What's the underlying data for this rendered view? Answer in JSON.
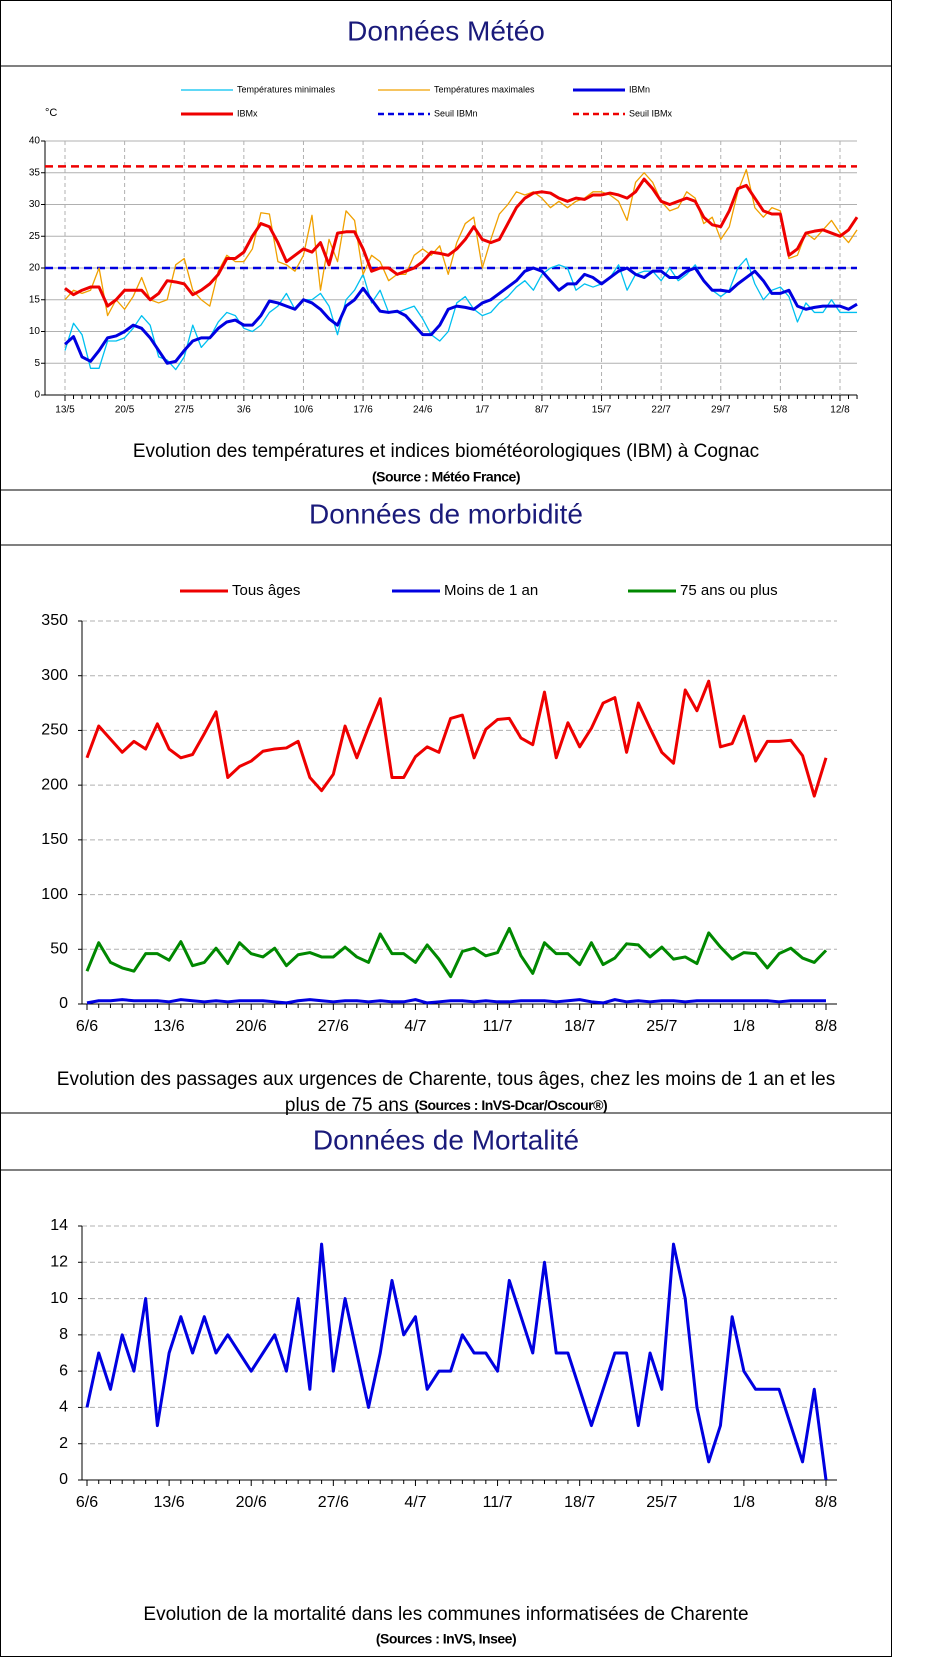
{
  "headers": [
    "Données Météo",
    "Données de morbidité",
    "Données de Mortalité"
  ],
  "chart_data": [
    {
      "type": "line",
      "y_unit": "°C",
      "caption": [
        "Evolution des températures et indices biométéorologiques (IBM) à Cognac"
      ],
      "source": "(Source : Météo France)",
      "categories": [
        "13/5",
        null,
        null,
        null,
        null,
        null,
        null,
        "20/5",
        null,
        null,
        null,
        null,
        null,
        null,
        "27/5",
        null,
        null,
        null,
        null,
        null,
        null,
        "3/6",
        null,
        null,
        null,
        null,
        null,
        null,
        "10/6",
        null,
        null,
        null,
        null,
        null,
        null,
        "17/6",
        null,
        null,
        null,
        null,
        null,
        null,
        "24/6",
        null,
        null,
        null,
        null,
        null,
        null,
        "1/7",
        null,
        null,
        null,
        null,
        null,
        null,
        "8/7",
        null,
        null,
        null,
        null,
        null,
        null,
        "15/7",
        null,
        null,
        null,
        null,
        null,
        null,
        "22/7",
        null,
        null,
        null,
        null,
        null,
        null,
        "29/7",
        null,
        null,
        null,
        null,
        null,
        null,
        "5/8",
        null,
        null,
        null,
        null,
        null,
        null,
        "12/8",
        null,
        null
      ],
      "series": [
        {
          "name": "Températures minimales",
          "color": "#00c0f0",
          "width": 1.3,
          "values": [
            7,
            11.3,
            9.5,
            4.2,
            4.2,
            8.5,
            8.5,
            9,
            10.5,
            12.5,
            11,
            6,
            5.5,
            4,
            6,
            11,
            7.5,
            9,
            11.5,
            13,
            12.5,
            10.5,
            10,
            11,
            13,
            14,
            16,
            13.5,
            15,
            15,
            16,
            14,
            9.5,
            15,
            16.5,
            19,
            14.5,
            16.5,
            13,
            13,
            13.5,
            14,
            12,
            9.5,
            8.5,
            10,
            14.5,
            15.5,
            13.5,
            12.5,
            13,
            14.5,
            15.5,
            17,
            18,
            16.5,
            19,
            20,
            20.5,
            20,
            16.5,
            17.5,
            17,
            17.5,
            18.5,
            20.5,
            16.5,
            19,
            19.5,
            19.5,
            18,
            20,
            18,
            19,
            20.5,
            18,
            16.5,
            15.5,
            16.5,
            20,
            21.5,
            17.5,
            15,
            16.5,
            17,
            15.5,
            11.5,
            14.5,
            13,
            13,
            15,
            13,
            13,
            13
          ]
        },
        {
          "name": "Températures maximales",
          "color": "#f0a000",
          "width": 1.3,
          "values": [
            15,
            16.5,
            16,
            16.5,
            20,
            12.5,
            15,
            13.5,
            15.5,
            18.5,
            15,
            14.5,
            15,
            20.5,
            21.5,
            16.5,
            15,
            14,
            19.5,
            22,
            21,
            21,
            23,
            28.7,
            28.5,
            21,
            20.5,
            19.5,
            22,
            28.3,
            16.5,
            24.5,
            21,
            29,
            27.5,
            19,
            22,
            21,
            18,
            19,
            19,
            22,
            23,
            22,
            23.5,
            19,
            24,
            27,
            28,
            20,
            24.5,
            28.5,
            30,
            32,
            31.5,
            32,
            31,
            29.5,
            30.5,
            29.5,
            30.5,
            31,
            32,
            32,
            31.5,
            30.5,
            27.5,
            33.5,
            35,
            33.5,
            30.5,
            29,
            29.5,
            32,
            31,
            27,
            28,
            24.5,
            26.5,
            32,
            35.5,
            29.5,
            28,
            29.5,
            29,
            21.5,
            22,
            25.5,
            24.5,
            26,
            27.5,
            25.5,
            24,
            26
          ]
        },
        {
          "name": "IBMn",
          "color": "#0000e0",
          "width": 3,
          "values": [
            8,
            9.2,
            6,
            5.3,
            7,
            9,
            9.3,
            10,
            11,
            10.5,
            9,
            7,
            5,
            5.3,
            7,
            8.5,
            9,
            9,
            10.5,
            11.5,
            11.8,
            11,
            11,
            12.5,
            14.8,
            14.5,
            14,
            13.5,
            15,
            14.5,
            13.5,
            12,
            11,
            14,
            15,
            16.8,
            15,
            13.2,
            13,
            13.2,
            12.5,
            11,
            9.5,
            9.5,
            11,
            13.5,
            14,
            13.8,
            13.5,
            14.5,
            15,
            16,
            17,
            18,
            19.5,
            20,
            19.5,
            18,
            16.5,
            17.5,
            17.5,
            19,
            18.5,
            17.5,
            18.5,
            19.5,
            20,
            19,
            18.5,
            19.5,
            19.5,
            18.5,
            18.5,
            19.5,
            20,
            18,
            16.5,
            16.5,
            16.3,
            17.5,
            18.5,
            19.5,
            18,
            16,
            16,
            16.5,
            14,
            13.5,
            13.8,
            14,
            14,
            14,
            13.5,
            14.3
          ]
        },
        {
          "name": "IBMx",
          "color": "#ee0000",
          "width": 3,
          "values": [
            16.8,
            15.8,
            16.5,
            17,
            17,
            14,
            15,
            16.5,
            16.5,
            16.5,
            15,
            16,
            18,
            17.8,
            17.5,
            15.8,
            16.5,
            17.5,
            19,
            21.5,
            21.5,
            22.5,
            25,
            27,
            26.5,
            24,
            21,
            22,
            23,
            22.5,
            24,
            20.5,
            25.5,
            25.7,
            25.7,
            23,
            19.5,
            20,
            20,
            19,
            19.5,
            20,
            21,
            22.5,
            22.3,
            22,
            23,
            24.5,
            26.5,
            24.5,
            24,
            24.5,
            27,
            29.5,
            31,
            31.8,
            32,
            31.8,
            31,
            30.5,
            31,
            30.8,
            31.5,
            31.5,
            31.8,
            31.5,
            31,
            32,
            34,
            32.5,
            30.5,
            30,
            30.5,
            31,
            30.5,
            28,
            26.8,
            26.5,
            29,
            32.5,
            33,
            31,
            29,
            28.5,
            28.5,
            22,
            23,
            25.5,
            25.8,
            26,
            25.5,
            25,
            26,
            28
          ]
        }
      ],
      "thresholds": [
        {
          "name": "Seuil IBMn",
          "color": "#0000e0",
          "value": 20,
          "dashed": true
        },
        {
          "name": "Seuil IBMx",
          "color": "#ee0000",
          "value": 36,
          "dashed": true
        }
      ],
      "ylim": [
        0,
        40
      ],
      "yticks": [
        0,
        5,
        10,
        15,
        20,
        25,
        30,
        35,
        40
      ],
      "grid": true,
      "xgrid": true
    },
    {
      "type": "line",
      "caption": [
        "Evolution des passages aux urgences de Charente, tous âges, chez les moins de 1 an et les",
        "plus de 75 ans"
      ],
      "source": "(Sources : InVS-Dcar/Oscour®)",
      "categories": [
        "6/6",
        null,
        null,
        null,
        null,
        null,
        null,
        "13/6",
        null,
        null,
        null,
        null,
        null,
        null,
        "20/6",
        null,
        null,
        null,
        null,
        null,
        null,
        "27/6",
        null,
        null,
        null,
        null,
        null,
        null,
        "4/7",
        null,
        null,
        null,
        null,
        null,
        null,
        "11/7",
        null,
        null,
        null,
        null,
        null,
        null,
        "18/7",
        null,
        null,
        null,
        null,
        null,
        null,
        "25/7",
        null,
        null,
        null,
        null,
        null,
        null,
        "1/8",
        null,
        null,
        null,
        null,
        null,
        null,
        "8/8"
      ],
      "series": [
        {
          "name": "Tous âges",
          "color": "#ee0000",
          "width": 3,
          "values": [
            225,
            254,
            242,
            230,
            240,
            233,
            256,
            233,
            225,
            228,
            247,
            267,
            207,
            217,
            222,
            231,
            233,
            234,
            240,
            207,
            195,
            210,
            254,
            225,
            253,
            279,
            207,
            207,
            226,
            235,
            230,
            261,
            264,
            225,
            251,
            260,
            261,
            243,
            237,
            285,
            225,
            257,
            235,
            252,
            275,
            280,
            230,
            275,
            252,
            230,
            220,
            287,
            268,
            295,
            235,
            238,
            263,
            222,
            240,
            240,
            241,
            227,
            190,
            225
          ]
        },
        {
          "name": "Moins de 1 an",
          "color": "#0000e0",
          "width": 3,
          "values": [
            1,
            3,
            3,
            4,
            3,
            3,
            3,
            2,
            4,
            3,
            2,
            3,
            2,
            3,
            3,
            3,
            2,
            1,
            3,
            4,
            3,
            2,
            3,
            3,
            2,
            3,
            2,
            2,
            4,
            1,
            2,
            3,
            3,
            2,
            3,
            2,
            2,
            3,
            3,
            3,
            2,
            3,
            4,
            2,
            1,
            4,
            2,
            3,
            2,
            3,
            3,
            2,
            3,
            3,
            3,
            3,
            3,
            3,
            3,
            2,
            3,
            3,
            3,
            3
          ]
        },
        {
          "name": "75 ans ou plus",
          "color": "#008800",
          "width": 3,
          "values": [
            30,
            56,
            38,
            33,
            30,
            46,
            46,
            40,
            57,
            35,
            38,
            51,
            37,
            56,
            46,
            43,
            51,
            35,
            45,
            47,
            43,
            43,
            52,
            43,
            38,
            64,
            46,
            46,
            38,
            54,
            41,
            25,
            48,
            51,
            44,
            47,
            69,
            44,
            28,
            56,
            46,
            46,
            36,
            56,
            36,
            42,
            55,
            54,
            43,
            52,
            41,
            43,
            37,
            65,
            52,
            41,
            47,
            46,
            33,
            46,
            51,
            42,
            38,
            49
          ]
        }
      ],
      "ylim": [
        0,
        350
      ],
      "yticks": [
        0,
        50,
        100,
        150,
        200,
        250,
        300,
        350
      ],
      "grid": true,
      "xgrid": false
    },
    {
      "type": "line",
      "caption": [
        "Evolution de la mortalité dans les communes informatisées de Charente"
      ],
      "source": "(Sources : InVS, Insee)",
      "categories": [
        "6/6",
        null,
        null,
        null,
        null,
        null,
        null,
        "13/6",
        null,
        null,
        null,
        null,
        null,
        null,
        "20/6",
        null,
        null,
        null,
        null,
        null,
        null,
        "27/6",
        null,
        null,
        null,
        null,
        null,
        null,
        "4/7",
        null,
        null,
        null,
        null,
        null,
        null,
        "11/7",
        null,
        null,
        null,
        null,
        null,
        null,
        "18/7",
        null,
        null,
        null,
        null,
        null,
        null,
        "25/7",
        null,
        null,
        null,
        null,
        null,
        null,
        "1/8",
        null,
        null,
        null,
        null,
        null,
        null,
        "8/8"
      ],
      "color": "#0000e0",
      "width": 3,
      "values": [
        4,
        7,
        5,
        8,
        6,
        10,
        3,
        7,
        9,
        7,
        9,
        7,
        8,
        7,
        6,
        7,
        8,
        6,
        10,
        5,
        13,
        6,
        10,
        7,
        4,
        7,
        11,
        8,
        9,
        5,
        6,
        6,
        8,
        7,
        7,
        6,
        11,
        9,
        7,
        12,
        7,
        7,
        5,
        3,
        5,
        7,
        7,
        3,
        7,
        5,
        13,
        10,
        4,
        1,
        3,
        9,
        6,
        5,
        5,
        5,
        3,
        1,
        5,
        0
      ],
      "ylim": [
        0,
        14
      ],
      "yticks": [
        0,
        2,
        4,
        6,
        8,
        10,
        12,
        14
      ],
      "grid": true,
      "xgrid": false
    }
  ]
}
